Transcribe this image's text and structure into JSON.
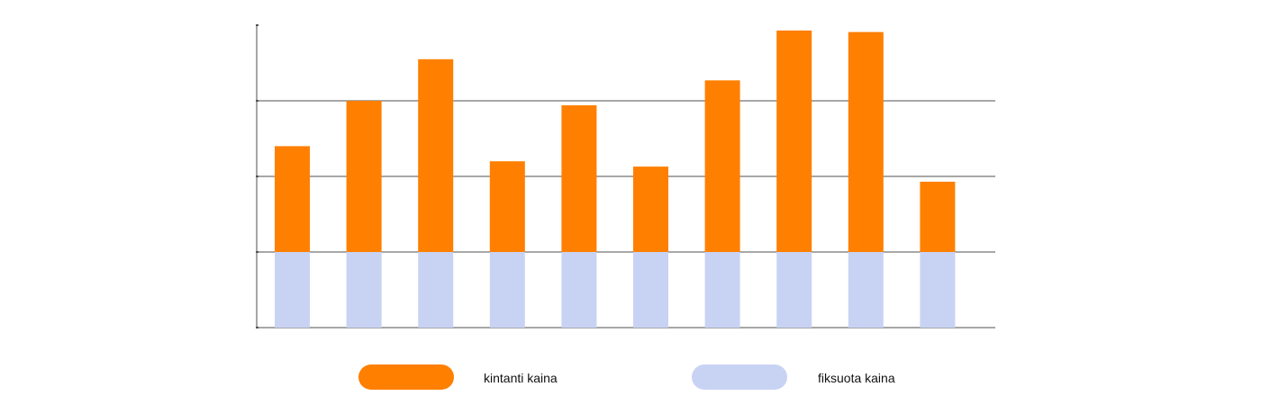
{
  "chart_data": {
    "type": "bar",
    "stacked": true,
    "categories": [
      "",
      "",
      "",
      "",
      "",
      "",
      "",
      "",
      "",
      ""
    ],
    "series": [
      {
        "name": "fiksuota kaina",
        "color": "#c8d3f4",
        "values": [
          1,
          1,
          1,
          1,
          1,
          1,
          1,
          1,
          1,
          1
        ]
      },
      {
        "name": "kintanti kaina",
        "color": "#ff7f00",
        "values": [
          1.4,
          2.0,
          2.55,
          1.2,
          1.94,
          1.13,
          2.27,
          2.93,
          2.91,
          0.93
        ]
      }
    ],
    "ylim": [
      0,
      4
    ],
    "yticks": [
      0,
      1,
      2,
      3,
      4
    ],
    "grid": true,
    "legend_placement": "bottom",
    "title": "",
    "xlabel": "",
    "ylabel": ""
  },
  "legend": {
    "items": [
      {
        "label": "kintanti kaina",
        "color": "#ff7f00"
      },
      {
        "label": "fiksuota kaina",
        "color": "#c8d3f4"
      }
    ]
  }
}
